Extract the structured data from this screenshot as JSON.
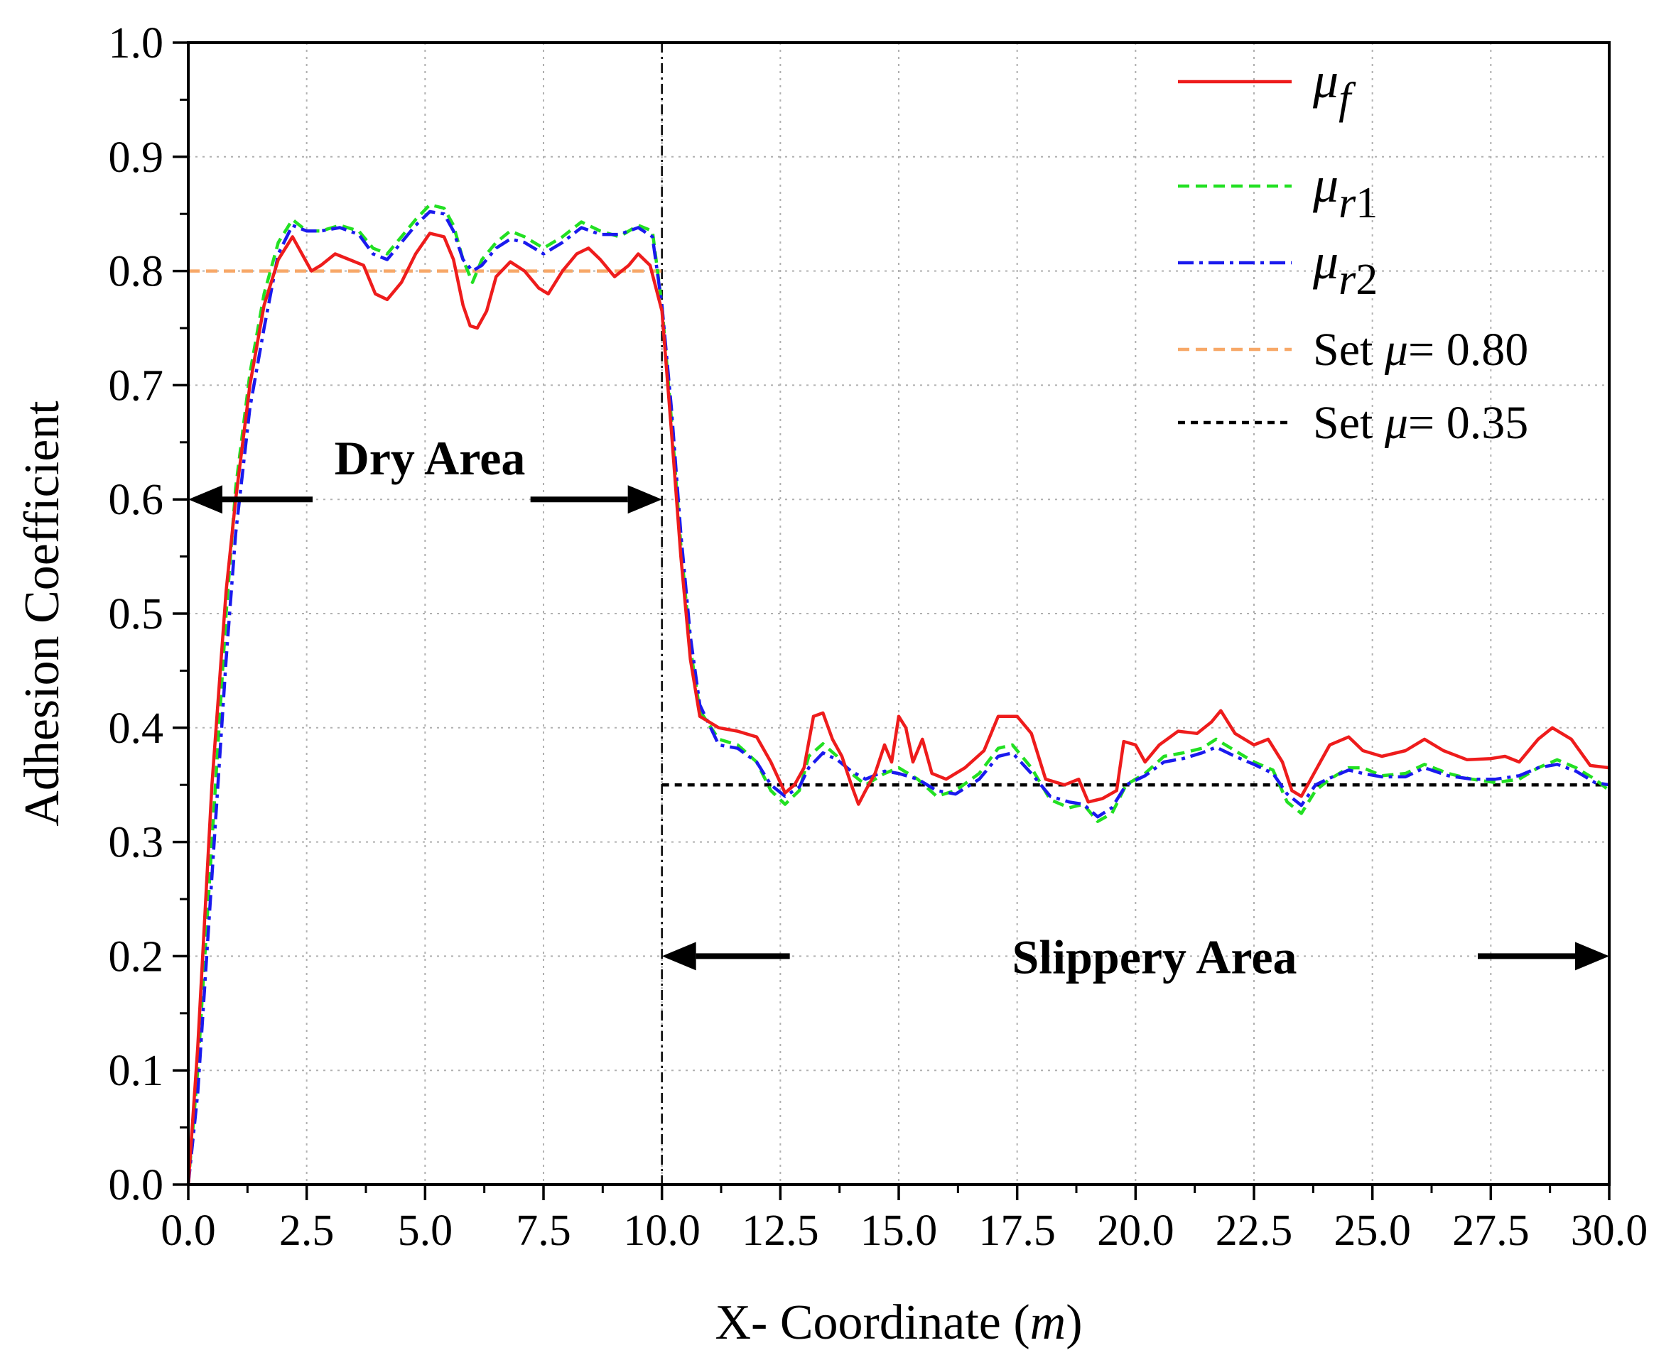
{
  "chart_data": {
    "type": "line",
    "title": "",
    "xlabel": "X- Coordinate (",
    "xlabel_unit": "m",
    "xlabel_close": ")",
    "ylabel": "Adhesion Coefficient",
    "xlim": [
      0,
      30
    ],
    "ylim": [
      0,
      1.0
    ],
    "x_ticks": [
      "0.0",
      "2.5",
      "5.0",
      "7.5",
      "10.0",
      "12.5",
      "15.0",
      "17.5",
      "20.0",
      "22.5",
      "25.0",
      "27.5",
      "30.0"
    ],
    "y_ticks": [
      "0.0",
      "0.1",
      "0.2",
      "0.3",
      "0.4",
      "0.5",
      "0.6",
      "0.7",
      "0.8",
      "0.9",
      "1.0"
    ],
    "grid": true,
    "legend_position": "top-right",
    "boundary_x": 10,
    "series": [
      {
        "name": "μf",
        "name_base": "μ",
        "name_sub": "f",
        "color": "#ee1c1c",
        "dash": "solid",
        "points": [
          [
            0,
            0
          ],
          [
            0.2,
            0.12
          ],
          [
            0.5,
            0.35
          ],
          [
            0.8,
            0.52
          ],
          [
            1.0,
            0.6
          ],
          [
            1.3,
            0.7
          ],
          [
            1.6,
            0.77
          ],
          [
            1.9,
            0.81
          ],
          [
            2.2,
            0.83
          ],
          [
            2.4,
            0.815
          ],
          [
            2.6,
            0.8
          ],
          [
            2.8,
            0.805
          ],
          [
            3.1,
            0.815
          ],
          [
            3.4,
            0.81
          ],
          [
            3.7,
            0.805
          ],
          [
            3.95,
            0.78
          ],
          [
            4.2,
            0.775
          ],
          [
            4.5,
            0.79
          ],
          [
            4.8,
            0.815
          ],
          [
            5.1,
            0.833
          ],
          [
            5.4,
            0.83
          ],
          [
            5.6,
            0.81
          ],
          [
            5.8,
            0.77
          ],
          [
            5.95,
            0.752
          ],
          [
            6.1,
            0.75
          ],
          [
            6.3,
            0.765
          ],
          [
            6.5,
            0.795
          ],
          [
            6.8,
            0.808
          ],
          [
            7.1,
            0.8
          ],
          [
            7.4,
            0.785
          ],
          [
            7.6,
            0.78
          ],
          [
            7.9,
            0.8
          ],
          [
            8.2,
            0.815
          ],
          [
            8.45,
            0.82
          ],
          [
            8.7,
            0.81
          ],
          [
            9.0,
            0.795
          ],
          [
            9.3,
            0.805
          ],
          [
            9.5,
            0.815
          ],
          [
            9.75,
            0.805
          ],
          [
            10.0,
            0.765
          ],
          [
            10.2,
            0.66
          ],
          [
            10.4,
            0.55
          ],
          [
            10.6,
            0.46
          ],
          [
            10.8,
            0.41
          ],
          [
            11.2,
            0.4
          ],
          [
            11.6,
            0.397
          ],
          [
            12.0,
            0.392
          ],
          [
            12.3,
            0.37
          ],
          [
            12.6,
            0.343
          ],
          [
            12.8,
            0.35
          ],
          [
            13.0,
            0.365
          ],
          [
            13.2,
            0.41
          ],
          [
            13.4,
            0.413
          ],
          [
            13.6,
            0.39
          ],
          [
            13.8,
            0.375
          ],
          [
            14.0,
            0.35
          ],
          [
            14.15,
            0.333
          ],
          [
            14.3,
            0.345
          ],
          [
            14.5,
            0.36
          ],
          [
            14.7,
            0.385
          ],
          [
            14.85,
            0.37
          ],
          [
            15.0,
            0.41
          ],
          [
            15.15,
            0.4
          ],
          [
            15.3,
            0.37
          ],
          [
            15.5,
            0.39
          ],
          [
            15.7,
            0.36
          ],
          [
            16.0,
            0.355
          ],
          [
            16.4,
            0.365
          ],
          [
            16.8,
            0.38
          ],
          [
            17.1,
            0.41
          ],
          [
            17.5,
            0.41
          ],
          [
            17.8,
            0.395
          ],
          [
            18.1,
            0.355
          ],
          [
            18.5,
            0.35
          ],
          [
            18.8,
            0.355
          ],
          [
            19.0,
            0.335
          ],
          [
            19.3,
            0.338
          ],
          [
            19.6,
            0.345
          ],
          [
            19.75,
            0.388
          ],
          [
            20.0,
            0.385
          ],
          [
            20.2,
            0.37
          ],
          [
            20.5,
            0.385
          ],
          [
            20.9,
            0.397
          ],
          [
            21.3,
            0.395
          ],
          [
            21.6,
            0.405
          ],
          [
            21.8,
            0.415
          ],
          [
            22.1,
            0.395
          ],
          [
            22.5,
            0.385
          ],
          [
            22.8,
            0.39
          ],
          [
            23.1,
            0.37
          ],
          [
            23.3,
            0.345
          ],
          [
            23.5,
            0.34
          ],
          [
            23.7,
            0.355
          ],
          [
            23.9,
            0.37
          ],
          [
            24.1,
            0.385
          ],
          [
            24.5,
            0.392
          ],
          [
            24.8,
            0.38
          ],
          [
            25.2,
            0.375
          ],
          [
            25.7,
            0.38
          ],
          [
            26.1,
            0.39
          ],
          [
            26.5,
            0.38
          ],
          [
            27.0,
            0.372
          ],
          [
            27.5,
            0.373
          ],
          [
            27.8,
            0.375
          ],
          [
            28.1,
            0.37
          ],
          [
            28.5,
            0.39
          ],
          [
            28.8,
            0.4
          ],
          [
            29.2,
            0.39
          ],
          [
            29.6,
            0.367
          ],
          [
            30.0,
            0.365
          ]
        ]
      },
      {
        "name": "μr1",
        "name_base": "μ",
        "name_sub": "r1",
        "color": "#22e022",
        "dash": "dashed",
        "points": [
          [
            0,
            0
          ],
          [
            0.2,
            0.1
          ],
          [
            0.5,
            0.3
          ],
          [
            0.8,
            0.5
          ],
          [
            1.0,
            0.61
          ],
          [
            1.3,
            0.71
          ],
          [
            1.6,
            0.78
          ],
          [
            1.9,
            0.825
          ],
          [
            2.2,
            0.845
          ],
          [
            2.5,
            0.835
          ],
          [
            2.8,
            0.835
          ],
          [
            3.2,
            0.84
          ],
          [
            3.6,
            0.835
          ],
          [
            3.9,
            0.82
          ],
          [
            4.2,
            0.815
          ],
          [
            4.5,
            0.83
          ],
          [
            4.8,
            0.845
          ],
          [
            5.1,
            0.858
          ],
          [
            5.4,
            0.855
          ],
          [
            5.6,
            0.84
          ],
          [
            5.8,
            0.81
          ],
          [
            6.0,
            0.79
          ],
          [
            6.2,
            0.81
          ],
          [
            6.5,
            0.825
          ],
          [
            6.8,
            0.835
          ],
          [
            7.1,
            0.83
          ],
          [
            7.5,
            0.82
          ],
          [
            7.9,
            0.83
          ],
          [
            8.3,
            0.843
          ],
          [
            8.7,
            0.835
          ],
          [
            9.1,
            0.83
          ],
          [
            9.5,
            0.84
          ],
          [
            9.8,
            0.835
          ],
          [
            10.0,
            0.77
          ],
          [
            10.2,
            0.67
          ],
          [
            10.4,
            0.56
          ],
          [
            10.6,
            0.47
          ],
          [
            10.8,
            0.415
          ],
          [
            11.2,
            0.39
          ],
          [
            11.6,
            0.385
          ],
          [
            12.0,
            0.37
          ],
          [
            12.3,
            0.345
          ],
          [
            12.6,
            0.333
          ],
          [
            12.9,
            0.345
          ],
          [
            13.1,
            0.375
          ],
          [
            13.4,
            0.386
          ],
          [
            13.7,
            0.375
          ],
          [
            14.0,
            0.36
          ],
          [
            14.3,
            0.35
          ],
          [
            14.7,
            0.36
          ],
          [
            15.0,
            0.365
          ],
          [
            15.4,
            0.355
          ],
          [
            15.8,
            0.34
          ],
          [
            16.2,
            0.345
          ],
          [
            16.7,
            0.36
          ],
          [
            17.1,
            0.382
          ],
          [
            17.4,
            0.385
          ],
          [
            17.8,
            0.365
          ],
          [
            18.2,
            0.337
          ],
          [
            18.6,
            0.33
          ],
          [
            18.9,
            0.333
          ],
          [
            19.2,
            0.318
          ],
          [
            19.5,
            0.325
          ],
          [
            19.8,
            0.35
          ],
          [
            20.2,
            0.36
          ],
          [
            20.6,
            0.375
          ],
          [
            21.0,
            0.378
          ],
          [
            21.4,
            0.382
          ],
          [
            21.7,
            0.39
          ],
          [
            22.1,
            0.38
          ],
          [
            22.5,
            0.37
          ],
          [
            22.9,
            0.363
          ],
          [
            23.2,
            0.335
          ],
          [
            23.5,
            0.325
          ],
          [
            23.8,
            0.345
          ],
          [
            24.1,
            0.355
          ],
          [
            24.5,
            0.365
          ],
          [
            24.8,
            0.365
          ],
          [
            25.2,
            0.358
          ],
          [
            25.7,
            0.36
          ],
          [
            26.1,
            0.368
          ],
          [
            26.6,
            0.36
          ],
          [
            27.1,
            0.355
          ],
          [
            27.6,
            0.352
          ],
          [
            28.1,
            0.355
          ],
          [
            28.5,
            0.365
          ],
          [
            28.9,
            0.372
          ],
          [
            29.3,
            0.365
          ],
          [
            29.7,
            0.355
          ],
          [
            30.0,
            0.345
          ]
        ]
      },
      {
        "name": "μr2",
        "name_base": "μ",
        "name_sub": "r2",
        "color": "#1a1aee",
        "dash": "dashdot",
        "points": [
          [
            0,
            0
          ],
          [
            0.2,
            0.08
          ],
          [
            0.5,
            0.27
          ],
          [
            0.8,
            0.46
          ],
          [
            1.0,
            0.57
          ],
          [
            1.3,
            0.68
          ],
          [
            1.6,
            0.75
          ],
          [
            1.9,
            0.815
          ],
          [
            2.2,
            0.84
          ],
          [
            2.5,
            0.835
          ],
          [
            2.8,
            0.835
          ],
          [
            3.2,
            0.838
          ],
          [
            3.6,
            0.832
          ],
          [
            3.9,
            0.815
          ],
          [
            4.2,
            0.81
          ],
          [
            4.5,
            0.825
          ],
          [
            4.8,
            0.84
          ],
          [
            5.1,
            0.852
          ],
          [
            5.4,
            0.85
          ],
          [
            5.6,
            0.835
          ],
          [
            5.8,
            0.81
          ],
          [
            6.0,
            0.8
          ],
          [
            6.2,
            0.805
          ],
          [
            6.5,
            0.82
          ],
          [
            6.8,
            0.828
          ],
          [
            7.1,
            0.825
          ],
          [
            7.5,
            0.815
          ],
          [
            7.9,
            0.825
          ],
          [
            8.3,
            0.838
          ],
          [
            8.7,
            0.832
          ],
          [
            9.1,
            0.832
          ],
          [
            9.5,
            0.838
          ],
          [
            9.8,
            0.83
          ],
          [
            10.0,
            0.77
          ],
          [
            10.2,
            0.68
          ],
          [
            10.4,
            0.57
          ],
          [
            10.6,
            0.48
          ],
          [
            10.8,
            0.42
          ],
          [
            11.2,
            0.385
          ],
          [
            11.6,
            0.382
          ],
          [
            12.0,
            0.37
          ],
          [
            12.3,
            0.35
          ],
          [
            12.6,
            0.34
          ],
          [
            12.9,
            0.348
          ],
          [
            13.1,
            0.365
          ],
          [
            13.4,
            0.378
          ],
          [
            13.7,
            0.372
          ],
          [
            14.0,
            0.362
          ],
          [
            14.3,
            0.355
          ],
          [
            14.7,
            0.362
          ],
          [
            15.0,
            0.36
          ],
          [
            15.4,
            0.355
          ],
          [
            15.8,
            0.345
          ],
          [
            16.2,
            0.342
          ],
          [
            16.7,
            0.355
          ],
          [
            17.1,
            0.375
          ],
          [
            17.4,
            0.378
          ],
          [
            17.8,
            0.36
          ],
          [
            18.2,
            0.34
          ],
          [
            18.6,
            0.335
          ],
          [
            18.9,
            0.333
          ],
          [
            19.2,
            0.322
          ],
          [
            19.5,
            0.33
          ],
          [
            19.8,
            0.35
          ],
          [
            20.2,
            0.358
          ],
          [
            20.6,
            0.37
          ],
          [
            21.0,
            0.373
          ],
          [
            21.4,
            0.378
          ],
          [
            21.7,
            0.383
          ],
          [
            22.1,
            0.375
          ],
          [
            22.5,
            0.368
          ],
          [
            22.9,
            0.36
          ],
          [
            23.2,
            0.342
          ],
          [
            23.5,
            0.332
          ],
          [
            23.8,
            0.35
          ],
          [
            24.1,
            0.356
          ],
          [
            24.5,
            0.363
          ],
          [
            24.8,
            0.36
          ],
          [
            25.2,
            0.357
          ],
          [
            25.7,
            0.357
          ],
          [
            26.1,
            0.365
          ],
          [
            26.6,
            0.358
          ],
          [
            27.1,
            0.355
          ],
          [
            27.6,
            0.355
          ],
          [
            28.1,
            0.358
          ],
          [
            28.5,
            0.365
          ],
          [
            28.9,
            0.368
          ],
          [
            29.3,
            0.362
          ],
          [
            29.7,
            0.352
          ],
          [
            30.0,
            0.35
          ]
        ]
      },
      {
        "name": "Set μ= 0.80",
        "color": "#f7a868",
        "dash": "dashed",
        "points": [
          [
            0,
            0.8
          ],
          [
            10,
            0.8
          ]
        ]
      },
      {
        "name": "Set μ= 0.35",
        "color": "#000000",
        "dash": "dotted",
        "points": [
          [
            10,
            0.35
          ],
          [
            30,
            0.35
          ]
        ]
      }
    ],
    "annotations": [
      {
        "text": "Dry Area",
        "x_start": 0,
        "x_end": 10,
        "y": 0.6
      },
      {
        "text": "Slippery Area",
        "x_start": 10,
        "x_end": 30,
        "y": 0.2
      }
    ]
  }
}
